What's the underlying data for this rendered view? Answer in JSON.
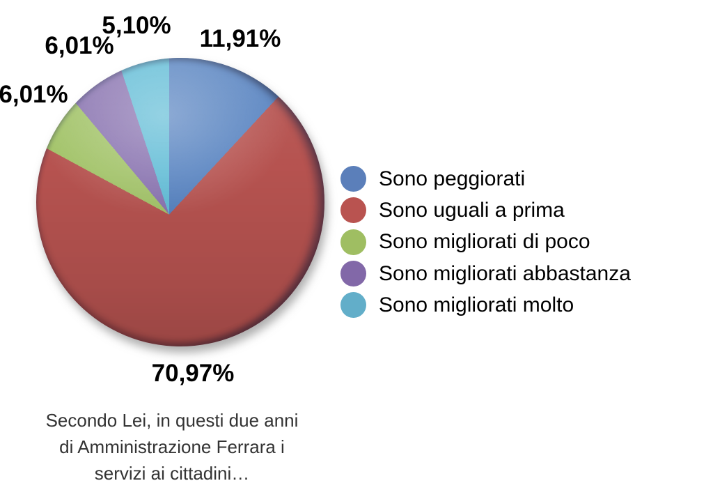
{
  "chart_data": {
    "type": "pie",
    "title": "",
    "unit": "%",
    "start_angle_deg": 0,
    "direction": "clockwise",
    "legend_position": "right",
    "caption": "Secondo Lei, in questi due anni di Amministrazione Ferrara i servizi ai cittadini…",
    "series": [
      {
        "name": "Sono peggiorati",
        "value": 11.91,
        "display": "11,91%",
        "color": "#5682C0",
        "legend_color": "#5B7FBA"
      },
      {
        "name": "Sono uguali a prima",
        "value": 70.97,
        "display": "70,97%",
        "color": "#B65350",
        "legend_color": "#B95350"
      },
      {
        "name": "Sono migliorati di poco",
        "value": 6.01,
        "display": "6,01%",
        "color": "#A2C368",
        "legend_color": "#9FBE62"
      },
      {
        "name": "Sono migliorati abbastanza",
        "value": 6.01,
        "display": "6,01%",
        "color": "#8973B0",
        "legend_color": "#8268A8"
      },
      {
        "name": "Sono migliorati molto",
        "value": 5.1,
        "display": "5,10%",
        "color": "#60BCD6",
        "legend_color": "#62AEC9"
      }
    ]
  },
  "caption": {
    "lines": [
      "Secondo Lei, in questi due anni",
      "di Amministrazione Ferrara i",
      "servizi ai cittadini…"
    ]
  }
}
